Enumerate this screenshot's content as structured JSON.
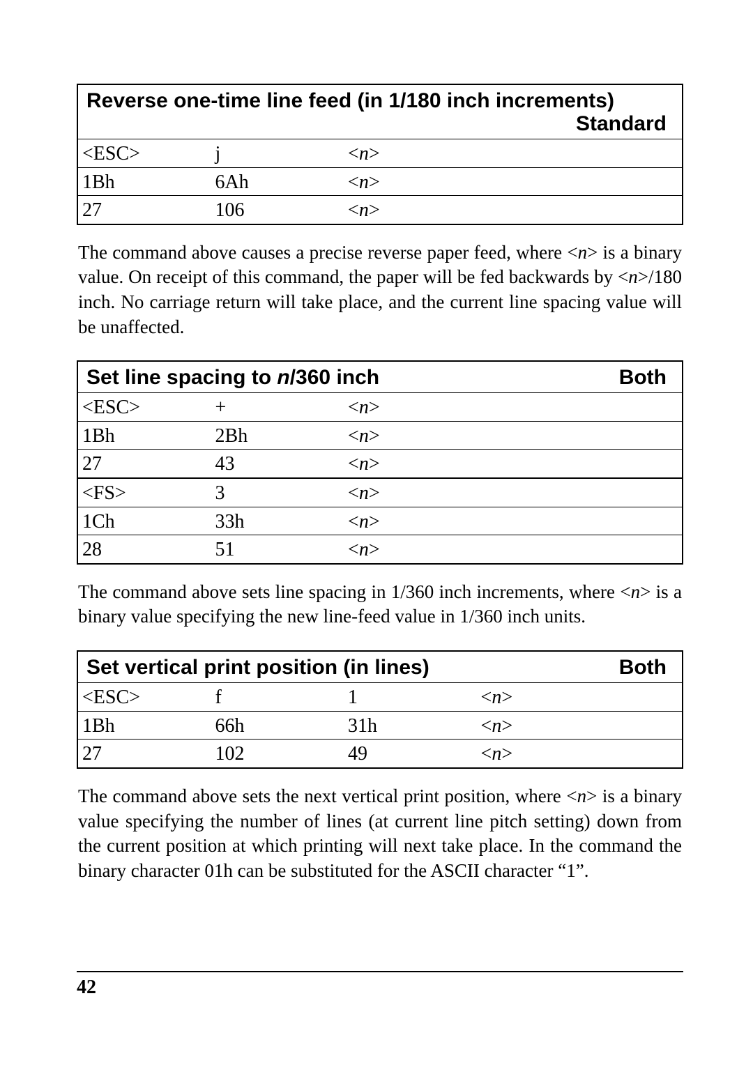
{
  "block1": {
    "title1": "Reverse one-time line feed (in 1/180 inch increments)",
    "mode": "Standard",
    "rows": [
      {
        "a": "<ESC>",
        "b": "j",
        "c_n": true
      },
      {
        "a": "1Bh",
        "b": "6Ah",
        "c_n": true
      },
      {
        "a": "27",
        "b": "106",
        "c_n": true
      }
    ]
  },
  "para1a": "The command above causes a precise reverse paper feed, where <",
  "para1b": "> is a binary value. On receipt of this command, the paper will be fed backwards by <",
  "para1c": ">/180 inch. No carriage return will take place, and the current line spacing value will be unaffected.",
  "block2": {
    "title_pre": "Set line spacing to ",
    "title_mid": "n",
    "title_post": "/360 inch",
    "mode": "Both",
    "rows": [
      {
        "a": "<ESC>",
        "b": "+",
        "c_n": true
      },
      {
        "a": "1Bh",
        "b": "2Bh",
        "c_n": true
      },
      {
        "a": "27",
        "b": "43",
        "c_n": true
      }
    ],
    "rows2": [
      {
        "a": "<FS>",
        "b": "3",
        "c_n": true
      },
      {
        "a": "1Ch",
        "b": "33h",
        "c_n": true
      },
      {
        "a": "28",
        "b": "51",
        "c_n": true
      }
    ]
  },
  "para2a": "The command above sets line spacing in 1/360 inch increments, where <",
  "para2b": "> is a binary value specifying the new line-feed value in 1/360 inch units.",
  "block3": {
    "title": "Set vertical print position (in lines)",
    "mode": "Both",
    "rows": [
      {
        "a": "<ESC>",
        "b": "f",
        "c": "1",
        "d_n": true
      },
      {
        "a": "1Bh",
        "b": "66h",
        "c": "31h",
        "d_n": true
      },
      {
        "a": "27",
        "b": "102",
        "c": "49",
        "d_n": true
      }
    ]
  },
  "para3a": "The command above sets the next vertical print position, where <",
  "para3b": "> is a binary value specifying the number of lines (at current line pitch setting) down from the current position at which printing will next take place. In the command the binary character 01h can be substituted for the ASCII character “1”.",
  "pageNumber": "42"
}
